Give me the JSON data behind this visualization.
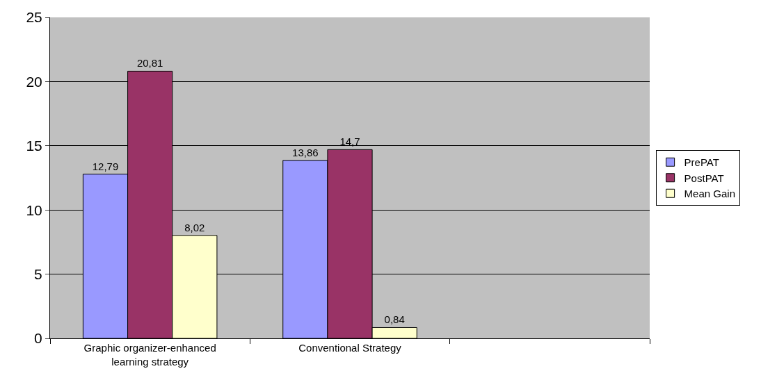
{
  "chart_data": {
    "type": "bar",
    "categories": [
      "Graphic organizer-enhanced learning strategy",
      "Conventional Strategy",
      null
    ],
    "series": [
      {
        "name": "PrePAT",
        "color": "#9999ff",
        "values": [
          12.79,
          13.86,
          null
        ],
        "value_labels": [
          "12,79",
          "13,86",
          null
        ]
      },
      {
        "name": "PostPAT",
        "color": "#993366",
        "values": [
          20.81,
          14.7,
          null
        ],
        "value_labels": [
          "20,81",
          "14,7",
          null
        ]
      },
      {
        "name": "Mean Gain",
        "color": "#ffffcc",
        "values": [
          8.02,
          0.84,
          null
        ],
        "value_labels": [
          "8,02",
          "0,84",
          null
        ]
      }
    ],
    "ylim": [
      0,
      25
    ],
    "yticks": [
      0,
      5,
      10,
      15,
      20,
      25
    ],
    "grid": "y",
    "legend": "right"
  }
}
